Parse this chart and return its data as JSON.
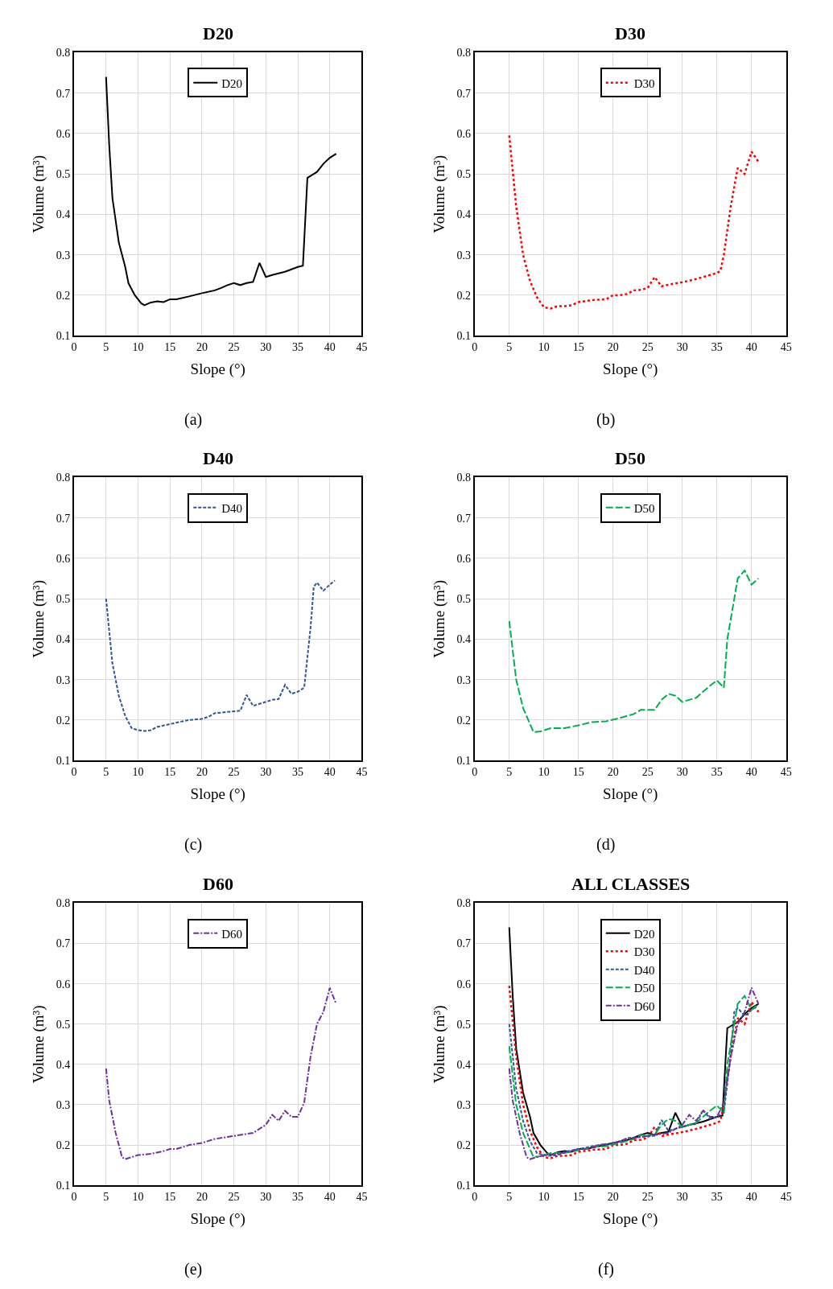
{
  "chart_data": [
    {
      "type": "line",
      "title": "D20",
      "xlabel": "Slope (°)",
      "ylabel": "Volume (m³)",
      "xlim": [
        0,
        45
      ],
      "xticks": [
        0,
        5,
        10,
        15,
        20,
        25,
        30,
        35,
        40,
        45
      ],
      "ylim": [
        0.1,
        0.8
      ],
      "yticks": [
        0.1,
        0.2,
        0.3,
        0.4,
        0.5,
        0.6,
        0.7,
        0.8
      ],
      "grid": true,
      "legend": "top",
      "annotations": [
        "(a)"
      ],
      "series": [
        {
          "name": "D20",
          "color": "#000000",
          "line_style": "solid",
          "x": [
            5,
            5.5,
            6,
            7,
            8,
            8.5,
            9.5,
            10.5,
            11,
            12,
            13,
            14,
            15,
            16,
            18,
            20,
            22,
            23,
            24,
            25,
            26,
            27,
            28,
            29,
            30,
            31,
            33,
            35,
            35.8,
            36.5,
            37,
            38,
            39,
            40,
            41
          ],
          "values": [
            0.74,
            0.57,
            0.44,
            0.33,
            0.27,
            0.23,
            0.2,
            0.18,
            0.175,
            0.182,
            0.185,
            0.183,
            0.19,
            0.19,
            0.197,
            0.205,
            0.212,
            0.218,
            0.225,
            0.23,
            0.225,
            0.23,
            0.233,
            0.28,
            0.245,
            0.25,
            0.258,
            0.27,
            0.273,
            0.49,
            0.495,
            0.505,
            0.525,
            0.54,
            0.55
          ]
        }
      ]
    },
    {
      "type": "line",
      "title": "D30",
      "xlabel": "Slope (°)",
      "ylabel": "Volume (m³)",
      "xlim": [
        0,
        45
      ],
      "xticks": [
        0,
        5,
        10,
        15,
        20,
        25,
        30,
        35,
        40,
        45
      ],
      "ylim": [
        0.1,
        0.8
      ],
      "yticks": [
        0.1,
        0.2,
        0.3,
        0.4,
        0.5,
        0.6,
        0.7,
        0.8
      ],
      "grid": true,
      "legend": "top",
      "annotations": [
        "(b)"
      ],
      "series": [
        {
          "name": "D30",
          "color": "#ff0000",
          "line_style": "dotted",
          "x": [
            5,
            6,
            7,
            8,
            9,
            10,
            11,
            12,
            13,
            14,
            15,
            17,
            19,
            20,
            21,
            22,
            23,
            24,
            25,
            26,
            27,
            28,
            30,
            32,
            34,
            35,
            35.5,
            36,
            37,
            38,
            39,
            40,
            41
          ],
          "values": [
            0.595,
            0.42,
            0.3,
            0.235,
            0.195,
            0.17,
            0.167,
            0.173,
            0.173,
            0.175,
            0.183,
            0.188,
            0.19,
            0.2,
            0.2,
            0.203,
            0.212,
            0.213,
            0.218,
            0.245,
            0.222,
            0.226,
            0.232,
            0.24,
            0.25,
            0.255,
            0.26,
            0.3,
            0.42,
            0.515,
            0.5,
            0.555,
            0.53
          ]
        }
      ]
    },
    {
      "type": "line",
      "title": "D40",
      "xlabel": "Slope (°)",
      "ylabel": "Volume (m³)",
      "xlim": [
        0,
        45
      ],
      "xticks": [
        0,
        5,
        10,
        15,
        20,
        25,
        30,
        35,
        40,
        45
      ],
      "ylim": [
        0.1,
        0.8
      ],
      "yticks": [
        0.1,
        0.2,
        0.3,
        0.4,
        0.5,
        0.6,
        0.7,
        0.8
      ],
      "grid": true,
      "legend": "top",
      "annotations": [
        "(c)"
      ],
      "series": [
        {
          "name": "D40",
          "color": "#2f5597",
          "line_style": "dashed",
          "x": [
            5,
            6,
            7,
            8,
            9,
            10,
            11,
            12,
            13,
            15,
            17,
            18,
            20,
            21,
            22,
            24,
            26,
            27,
            28,
            30,
            31,
            32,
            33,
            34,
            35,
            36,
            37,
            37.5,
            38,
            39,
            40,
            40.8
          ],
          "values": [
            0.5,
            0.34,
            0.26,
            0.21,
            0.18,
            0.175,
            0.173,
            0.175,
            0.183,
            0.19,
            0.197,
            0.2,
            0.203,
            0.208,
            0.217,
            0.22,
            0.223,
            0.262,
            0.235,
            0.245,
            0.25,
            0.252,
            0.287,
            0.265,
            0.27,
            0.28,
            0.43,
            0.53,
            0.54,
            0.52,
            0.535,
            0.545
          ]
        }
      ]
    },
    {
      "type": "line",
      "title": "D50",
      "xlabel": "Slope (°)",
      "ylabel": "Volume (m³)",
      "xlim": [
        0,
        45
      ],
      "xticks": [
        0,
        5,
        10,
        15,
        20,
        25,
        30,
        35,
        40,
        45
      ],
      "ylim": [
        0.1,
        0.8
      ],
      "yticks": [
        0.1,
        0.2,
        0.3,
        0.4,
        0.5,
        0.6,
        0.7,
        0.8
      ],
      "grid": true,
      "legend": "top",
      "annotations": [
        "(d)"
      ],
      "series": [
        {
          "name": "D50",
          "color": "#00b050",
          "line_style": "longdash",
          "x": [
            5,
            6,
            7,
            8.5,
            9.5,
            11,
            13,
            15,
            17,
            19,
            21,
            23,
            24,
            26,
            27,
            28,
            29,
            30,
            32,
            34,
            35,
            36,
            36.5,
            38,
            39,
            40,
            41
          ],
          "values": [
            0.445,
            0.3,
            0.23,
            0.17,
            0.172,
            0.18,
            0.18,
            0.187,
            0.195,
            0.197,
            0.205,
            0.215,
            0.225,
            0.225,
            0.25,
            0.265,
            0.26,
            0.245,
            0.255,
            0.285,
            0.298,
            0.28,
            0.4,
            0.55,
            0.57,
            0.535,
            0.55
          ]
        }
      ]
    },
    {
      "type": "line",
      "title": "D60",
      "xlabel": "Slope (°)",
      "ylabel": "Volume (m³)",
      "xlim": [
        0,
        45
      ],
      "xticks": [
        0,
        5,
        10,
        15,
        20,
        25,
        30,
        35,
        40,
        45
      ],
      "ylim": [
        0.1,
        0.8
      ],
      "yticks": [
        0.1,
        0.2,
        0.3,
        0.4,
        0.5,
        0.6,
        0.7,
        0.8
      ],
      "grid": true,
      "legend": "top",
      "annotations": [
        "(e)"
      ],
      "series": [
        {
          "name": "D60",
          "color": "#7030a0",
          "line_style": "dashdot",
          "x": [
            5,
            5.5,
            6.5,
            7.5,
            8,
            9,
            10,
            12,
            14,
            15,
            16,
            18,
            20,
            22,
            24,
            26,
            28,
            30,
            31,
            32,
            33,
            34,
            35,
            36,
            37,
            38,
            39,
            40,
            41
          ],
          "values": [
            0.39,
            0.31,
            0.23,
            0.17,
            0.165,
            0.17,
            0.175,
            0.178,
            0.185,
            0.19,
            0.19,
            0.2,
            0.205,
            0.215,
            0.22,
            0.225,
            0.23,
            0.25,
            0.275,
            0.26,
            0.285,
            0.27,
            0.27,
            0.305,
            0.42,
            0.5,
            0.53,
            0.59,
            0.55
          ]
        }
      ]
    },
    {
      "type": "line",
      "title": "ALL CLASSES",
      "xlabel": "Slope (°)",
      "ylabel": "Volume (m³)",
      "xlim": [
        0,
        45
      ],
      "xticks": [
        0,
        5,
        10,
        15,
        20,
        25,
        30,
        35,
        40,
        45
      ],
      "ylim": [
        0.1,
        0.8
      ],
      "yticks": [
        0.1,
        0.2,
        0.3,
        0.4,
        0.5,
        0.6,
        0.7,
        0.8
      ],
      "grid": true,
      "legend": "top",
      "annotations": [
        "(f)"
      ],
      "series": [
        {
          "name": "D20",
          "color": "#000000",
          "line_style": "solid",
          "x": [
            5,
            5.5,
            6,
            7,
            8,
            8.5,
            9.5,
            10.5,
            11,
            12,
            13,
            14,
            15,
            16,
            18,
            20,
            22,
            23,
            24,
            25,
            26,
            27,
            28,
            29,
            30,
            31,
            33,
            35,
            35.8,
            36.5,
            37,
            38,
            39,
            40,
            41
          ],
          "values": [
            0.74,
            0.57,
            0.44,
            0.33,
            0.27,
            0.23,
            0.2,
            0.18,
            0.175,
            0.182,
            0.185,
            0.183,
            0.19,
            0.19,
            0.197,
            0.205,
            0.212,
            0.218,
            0.225,
            0.23,
            0.225,
            0.23,
            0.233,
            0.28,
            0.245,
            0.25,
            0.258,
            0.27,
            0.273,
            0.49,
            0.495,
            0.505,
            0.525,
            0.54,
            0.55
          ]
        },
        {
          "name": "D30",
          "color": "#ff0000",
          "line_style": "dotted",
          "x": [
            5,
            6,
            7,
            8,
            9,
            10,
            11,
            12,
            13,
            14,
            15,
            17,
            19,
            20,
            21,
            22,
            23,
            24,
            25,
            26,
            27,
            28,
            30,
            32,
            34,
            35,
            35.5,
            36,
            37,
            38,
            39,
            40,
            41
          ],
          "values": [
            0.595,
            0.42,
            0.3,
            0.235,
            0.195,
            0.17,
            0.167,
            0.173,
            0.173,
            0.175,
            0.183,
            0.188,
            0.19,
            0.2,
            0.2,
            0.203,
            0.212,
            0.213,
            0.218,
            0.245,
            0.222,
            0.226,
            0.232,
            0.24,
            0.25,
            0.255,
            0.26,
            0.3,
            0.42,
            0.515,
            0.5,
            0.555,
            0.53
          ]
        },
        {
          "name": "D40",
          "color": "#2f5597",
          "line_style": "dashed",
          "x": [
            5,
            6,
            7,
            8,
            9,
            10,
            11,
            12,
            13,
            15,
            17,
            18,
            20,
            21,
            22,
            24,
            26,
            27,
            28,
            30,
            31,
            32,
            33,
            34,
            35,
            36,
            37,
            37.5,
            38,
            39,
            40,
            40.8
          ],
          "values": [
            0.5,
            0.34,
            0.26,
            0.21,
            0.18,
            0.175,
            0.173,
            0.175,
            0.183,
            0.19,
            0.197,
            0.2,
            0.203,
            0.208,
            0.217,
            0.22,
            0.223,
            0.262,
            0.235,
            0.245,
            0.25,
            0.252,
            0.287,
            0.265,
            0.27,
            0.28,
            0.43,
            0.53,
            0.54,
            0.52,
            0.535,
            0.545
          ]
        },
        {
          "name": "D50",
          "color": "#00b050",
          "line_style": "longdash",
          "x": [
            5,
            6,
            7,
            8.5,
            9.5,
            11,
            13,
            15,
            17,
            19,
            21,
            23,
            24,
            26,
            27,
            28,
            29,
            30,
            32,
            34,
            35,
            36,
            36.5,
            38,
            39,
            40,
            41
          ],
          "values": [
            0.445,
            0.3,
            0.23,
            0.17,
            0.172,
            0.18,
            0.18,
            0.187,
            0.195,
            0.197,
            0.205,
            0.215,
            0.225,
            0.225,
            0.25,
            0.265,
            0.26,
            0.245,
            0.255,
            0.285,
            0.298,
            0.28,
            0.4,
            0.55,
            0.57,
            0.535,
            0.55
          ]
        },
        {
          "name": "D60",
          "color": "#7030a0",
          "line_style": "dashdot",
          "x": [
            5,
            5.5,
            6.5,
            7.5,
            8,
            9,
            10,
            12,
            14,
            15,
            16,
            18,
            20,
            22,
            24,
            26,
            28,
            30,
            31,
            32,
            33,
            34,
            35,
            36,
            37,
            38,
            39,
            40,
            41
          ],
          "values": [
            0.39,
            0.31,
            0.23,
            0.17,
            0.165,
            0.17,
            0.175,
            0.178,
            0.185,
            0.19,
            0.19,
            0.2,
            0.205,
            0.215,
            0.22,
            0.225,
            0.23,
            0.25,
            0.275,
            0.26,
            0.285,
            0.27,
            0.27,
            0.305,
            0.42,
            0.5,
            0.53,
            0.59,
            0.55
          ]
        }
      ]
    }
  ]
}
